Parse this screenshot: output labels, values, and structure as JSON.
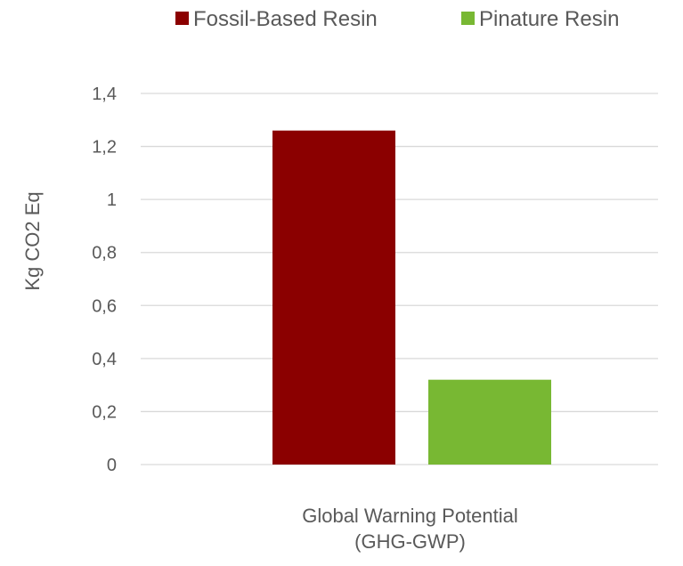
{
  "chart_data": {
    "type": "bar",
    "title": "",
    "categories": [
      "Global Warning Potential (GHG-GWP)"
    ],
    "category_label_lines": [
      "Global Warning Potential",
      "(GHG-GWP)"
    ],
    "series": [
      {
        "name": "Fossil-Based Resin",
        "values": [
          1.26
        ],
        "color": "#8B0000"
      },
      {
        "name": "Pinature Resin",
        "values": [
          0.32
        ],
        "color": "#78B833"
      }
    ],
    "xlabel": "",
    "ylabel": "Kg CO2 Eq",
    "ylim": [
      0,
      1.4
    ],
    "yticks": [
      0,
      0.2,
      0.4,
      0.6,
      0.8,
      1,
      1.2,
      1.4
    ],
    "ytick_labels": [
      "0",
      "0,2",
      "0,4",
      "0,6",
      "0,8",
      "1",
      "1,2",
      "1,4"
    ],
    "grid": true,
    "legend_position": "top"
  }
}
